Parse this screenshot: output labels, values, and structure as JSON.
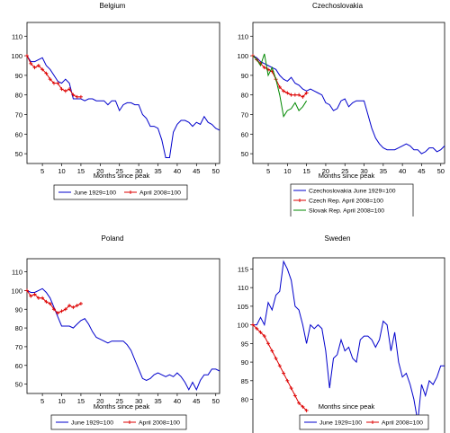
{
  "chart_data": [
    {
      "type": "line",
      "title": "Belgium",
      "xlabel": "Months since peak",
      "ylabel": "",
      "xlim": [
        1,
        51
      ],
      "ylim": [
        45,
        117
      ],
      "x_ticks": [
        5,
        10,
        15,
        20,
        25,
        30,
        35,
        40,
        45,
        50
      ],
      "y_ticks": [
        50,
        60,
        70,
        80,
        90,
        100,
        110
      ],
      "legend_position": "bottom",
      "series": [
        {
          "name": "June 1929=100",
          "color": "#0000cc",
          "marker": "none",
          "x": [
            1,
            2,
            3,
            4,
            5,
            6,
            7,
            8,
            9,
            10,
            11,
            12,
            13,
            14,
            15,
            16,
            17,
            18,
            19,
            20,
            21,
            22,
            23,
            24,
            25,
            26,
            27,
            28,
            29,
            30,
            31,
            32,
            33,
            34,
            35,
            36,
            37,
            38,
            39,
            40,
            41,
            42,
            43,
            44,
            45,
            46,
            47,
            48,
            49,
            50,
            51
          ],
          "y": [
            100,
            97,
            97,
            98,
            99,
            95,
            93,
            90,
            87,
            86,
            88,
            86,
            78,
            78,
            78,
            77,
            78,
            78,
            77,
            77,
            77,
            75,
            77,
            77,
            72,
            75,
            76,
            76,
            75,
            75,
            70,
            68,
            64,
            64,
            63,
            57,
            48,
            48,
            61,
            65,
            67,
            67,
            66,
            64,
            66,
            65,
            69,
            66,
            65,
            63,
            62
          ]
        },
        {
          "name": "April 2008=100",
          "color": "#dd0000",
          "marker": "plus",
          "x": [
            1,
            2,
            3,
            4,
            5,
            6,
            7,
            8,
            9,
            10,
            11,
            12,
            13,
            14,
            15
          ],
          "y": [
            100,
            96,
            94,
            95,
            93,
            91,
            88,
            86,
            86,
            83,
            82,
            83,
            80,
            79,
            79
          ]
        }
      ]
    },
    {
      "type": "line",
      "title": "Czechoslovakia",
      "xlabel": "Months since peak",
      "ylabel": "",
      "xlim": [
        1,
        51
      ],
      "ylim": [
        45,
        117
      ],
      "x_ticks": [
        5,
        10,
        15,
        20,
        25,
        30,
        35,
        40,
        45,
        50
      ],
      "y_ticks": [
        50,
        60,
        70,
        80,
        90,
        100,
        110
      ],
      "legend_position": "bottom",
      "series": [
        {
          "name": "Czechoslovakia June 1929=100",
          "color": "#0000cc",
          "marker": "none",
          "x": [
            1,
            2,
            3,
            4,
            5,
            6,
            7,
            8,
            9,
            10,
            11,
            12,
            13,
            14,
            15,
            16,
            17,
            18,
            19,
            20,
            21,
            22,
            23,
            24,
            25,
            26,
            27,
            28,
            29,
            30,
            31,
            32,
            33,
            34,
            35,
            36,
            37,
            38,
            39,
            40,
            41,
            42,
            43,
            44,
            45,
            46,
            47,
            48,
            49,
            50,
            51
          ],
          "y": [
            100,
            99,
            97,
            96,
            95,
            94,
            93,
            90,
            88,
            87,
            89,
            86,
            85,
            83,
            82,
            83,
            82,
            81,
            80,
            76,
            75,
            72,
            73,
            77,
            78,
            74,
            76,
            77,
            77,
            77,
            70,
            63,
            58,
            55,
            53,
            52,
            52,
            52,
            53,
            54,
            55,
            54,
            52,
            52,
            50,
            51,
            53,
            53,
            51,
            52,
            54
          ]
        },
        {
          "name": "Czech Rep. April 2008=100",
          "color": "#dd0000",
          "marker": "plus",
          "x": [
            1,
            2,
            3,
            4,
            5,
            6,
            7,
            8,
            9,
            10,
            11,
            12,
            13,
            14,
            15
          ],
          "y": [
            100,
            98,
            96,
            94,
            93,
            92,
            88,
            84,
            82,
            81,
            80,
            80,
            80,
            79,
            81
          ]
        },
        {
          "name": "Slovak Rep. April 2008=100",
          "color": "#008800",
          "marker": "none",
          "x": [
            1,
            2,
            3,
            4,
            5,
            6,
            7,
            8,
            9,
            10,
            11,
            12,
            13,
            14,
            15
          ],
          "y": [
            100,
            98,
            95,
            101,
            90,
            94,
            88,
            80,
            69,
            72,
            73,
            76,
            72,
            74,
            77
          ]
        }
      ]
    },
    {
      "type": "line",
      "title": "Poland",
      "xlabel": "Months since peak",
      "ylabel": "",
      "xlim": [
        1,
        51
      ],
      "ylim": [
        45,
        117
      ],
      "x_ticks": [
        5,
        10,
        15,
        20,
        25,
        30,
        35,
        40,
        45,
        50
      ],
      "y_ticks": [
        50,
        60,
        70,
        80,
        90,
        100,
        110
      ],
      "legend_position": "bottom",
      "series": [
        {
          "name": "June 1929=100",
          "color": "#0000cc",
          "marker": "none",
          "x": [
            1,
            2,
            3,
            4,
            5,
            6,
            7,
            8,
            9,
            10,
            11,
            12,
            13,
            14,
            15,
            16,
            17,
            18,
            19,
            20,
            21,
            22,
            23,
            24,
            25,
            26,
            27,
            28,
            29,
            30,
            31,
            32,
            33,
            34,
            35,
            36,
            37,
            38,
            39,
            40,
            41,
            42,
            43,
            44,
            45,
            46,
            47,
            48,
            49,
            50,
            51
          ],
          "y": [
            100,
            99,
            99,
            100,
            101,
            99,
            96,
            91,
            86,
            81,
            81,
            81,
            80,
            82,
            84,
            85,
            82,
            78,
            75,
            74,
            73,
            72,
            73,
            73,
            73,
            73,
            71,
            68,
            63,
            58,
            53,
            52,
            53,
            55,
            56,
            55,
            54,
            55,
            54,
            56,
            54,
            51,
            47,
            51,
            47,
            52,
            55,
            55,
            58,
            58,
            57
          ]
        },
        {
          "name": "April 2008=100",
          "color": "#dd0000",
          "marker": "plus",
          "x": [
            1,
            2,
            3,
            4,
            5,
            6,
            7,
            8,
            9,
            10,
            11,
            12,
            13,
            14,
            15
          ],
          "y": [
            100,
            97,
            98,
            96,
            96,
            94,
            93,
            90,
            88,
            89,
            90,
            92,
            91,
            92,
            93
          ]
        }
      ]
    },
    {
      "type": "line",
      "title": "Sweden",
      "xlabel": "Months since peak",
      "ylabel": "",
      "xlim": [
        1,
        51
      ],
      "ylim": [
        70,
        118
      ],
      "x_ticks": [
        5,
        10,
        15,
        20,
        25,
        30,
        35,
        40,
        45,
        50
      ],
      "y_ticks": [
        80,
        85,
        90,
        95,
        100,
        105,
        110,
        115
      ],
      "legend_position": "bottom",
      "series": [
        {
          "name": "June 1929=100",
          "color": "#0000cc",
          "marker": "none",
          "x": [
            1,
            2,
            3,
            4,
            5,
            6,
            7,
            8,
            9,
            10,
            11,
            12,
            13,
            14,
            15,
            16,
            17,
            18,
            19,
            20,
            21,
            22,
            23,
            24,
            25,
            26,
            27,
            28,
            29,
            30,
            31,
            32,
            33,
            34,
            35,
            36,
            37,
            38,
            39,
            40,
            41,
            42,
            43,
            44,
            45,
            46,
            47,
            48,
            49,
            50,
            51
          ],
          "y": [
            100,
            100,
            102,
            100,
            106,
            104,
            108,
            109,
            117,
            115,
            112,
            105,
            104,
            100,
            95,
            100,
            99,
            100,
            99,
            93,
            83,
            91,
            92,
            96,
            93,
            94,
            91,
            90,
            96,
            97,
            97,
            96,
            94,
            96,
            101,
            100,
            93,
            98,
            90,
            86,
            87,
            84,
            80,
            74,
            84,
            81,
            85,
            84,
            86,
            89,
            89
          ]
        },
        {
          "name": "April 2008=100",
          "color": "#dd0000",
          "marker": "plus",
          "x": [
            1,
            2,
            3,
            4,
            5,
            6,
            7,
            8,
            9,
            10,
            11,
            12,
            13,
            14,
            15
          ],
          "y": [
            100,
            99,
            98,
            97,
            95,
            93,
            91,
            89,
            87,
            85,
            83,
            81,
            79,
            78,
            77
          ]
        }
      ]
    }
  ]
}
